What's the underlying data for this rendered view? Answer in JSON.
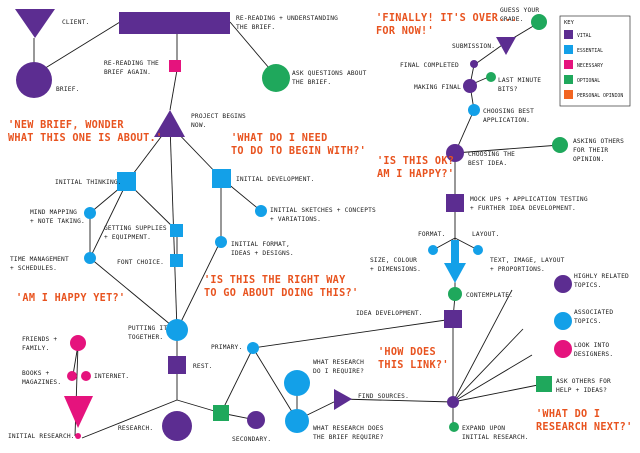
{
  "colors": {
    "vital": "#5c2d91",
    "essential": "#13a0e8",
    "necessary": "#e5137d",
    "optional": "#1fa85c",
    "opinion": "#f26522"
  },
  "key": {
    "title": "KEY",
    "items": [
      {
        "label": "VITAL",
        "color": "#5c2d91"
      },
      {
        "label": "ESSENTIAL",
        "color": "#13a0e8"
      },
      {
        "label": "NECESSARY",
        "color": "#e5137d"
      },
      {
        "label": "OPTIONAL",
        "color": "#1fa85c"
      },
      {
        "label": "PERSONAL OPINION",
        "color": "#f26522"
      }
    ]
  },
  "labels": {
    "client": "CLIENT.",
    "brief": "BRIEF.",
    "rereading": [
      "RE-READING + UNDERSTANDING",
      "THE BRIEF."
    ],
    "rereading_again": [
      "RE-READING THE",
      "BRIEF AGAIN."
    ],
    "ask_questions": [
      "ASK QUESTIONS ABOUT",
      "THE BRIEF."
    ],
    "project_begins": [
      "PROJECT BEGINS",
      "NOW."
    ],
    "initial_thinking": "INITIAL THINKING.",
    "initial_development": "INITIAL DEVELOPMENT.",
    "mind_mapping": [
      "MIND MAPPING",
      "+ NOTE TAKING."
    ],
    "getting_supplies": [
      "GETTING SUPPLIES",
      "+ EQUIPMENT."
    ],
    "initial_sketches": [
      "INITIAL SKETCHES + CONCEPTS",
      "+ VARIATIONS."
    ],
    "time_management": [
      "TIME MANAGEMENT",
      "+ SCHEDULES."
    ],
    "font_choice": "FONT CHOICE.",
    "initial_format": [
      "INITIAL FORMAT,",
      "IDEAS + DESIGNS."
    ],
    "putting_together": [
      "PUTTING IT",
      "TOGETHER."
    ],
    "rest": "REST.",
    "primary": "PRIMARY.",
    "secondary": "SECONDARY.",
    "research": "RESEARCH.",
    "initial_research": "INITIAL RESEARCH.",
    "friends_family": [
      "FRIENDS +",
      "FAMILY."
    ],
    "books_magazines": [
      "BOOKS +",
      "MAGAZINES."
    ],
    "internet": "INTERNET.",
    "what_research_require": [
      "WHAT RESEARCH",
      "DO I REQUIRE?"
    ],
    "what_research_brief": [
      "WHAT RESEARCH DOES",
      "THE BRIEF REQUIRE?"
    ],
    "find_sources": "FIND SOURCES.",
    "idea_development": "IDEA DEVELOPMENT.",
    "contemplate": "CONTEMPLATE.",
    "format": "FORMAT.",
    "layout": "LAYOUT.",
    "size_colour": [
      "SIZE, COLOUR",
      "+ DIMENSIONS."
    ],
    "text_image_layout": [
      "TEXT, IMAGE, LAYOUT",
      "+ PROPORTIONS."
    ],
    "mockups": [
      "MOCK UPS + APPLICATION TESTING",
      "+ FURTHER IDEA DEVELOPMENT."
    ],
    "choosing_best_idea": [
      "CHOOSING THE",
      "BEST IDEA."
    ],
    "choosing_best_application": [
      "CHOOSING BEST",
      "APPLICATION."
    ],
    "asking_others": [
      "ASKING OTHERS",
      "FOR THEIR",
      "OPINION."
    ],
    "final_completed": "FINAL COMPLETED",
    "making_final": "MAKING FINAL",
    "last_minute": [
      "LAST MINUTE",
      "BITS?"
    ],
    "submission": "SUBMISSION.",
    "guess_grade": [
      "GUESS YOUR",
      "GRADE."
    ],
    "highly_related": [
      "HIGHLY RELATED",
      "TOPICS."
    ],
    "associated_topics": [
      "ASSOCIATED",
      "TOPICS."
    ],
    "look_designers": [
      "LOOK INTO",
      "DESIGNERS."
    ],
    "ask_help": [
      "ASK OTHERS FOR",
      "HELP + IDEAS?"
    ],
    "expand_research": [
      "EXPAND UPON",
      "INITIAL RESEARCH."
    ]
  },
  "quotes": {
    "new_brief": [
      "'NEW BRIEF, WONDER",
      "WHAT THIS ONE IS ABOUT.'"
    ],
    "what_do_i_need": [
      "'WHAT DO I NEED",
      "TO DO TO BEGIN WITH?'"
    ],
    "am_i_happy_yet": "'AM I HAPPY YET?'",
    "right_way": [
      "'IS THIS THE RIGHT WAY",
      "TO GO ABOUT DOING THIS?'"
    ],
    "finally": [
      "'FINALLY! IT'S OVER...",
      "FOR NOW!'"
    ],
    "is_this_ok": [
      "'IS THIS OK?",
      "AM I HAPPY?'"
    ],
    "how_does_link": [
      "'HOW DOES",
      "THIS LINK?'"
    ],
    "what_research_next": [
      "'WHAT DO I",
      "RESEARCH NEXT?'"
    ]
  }
}
